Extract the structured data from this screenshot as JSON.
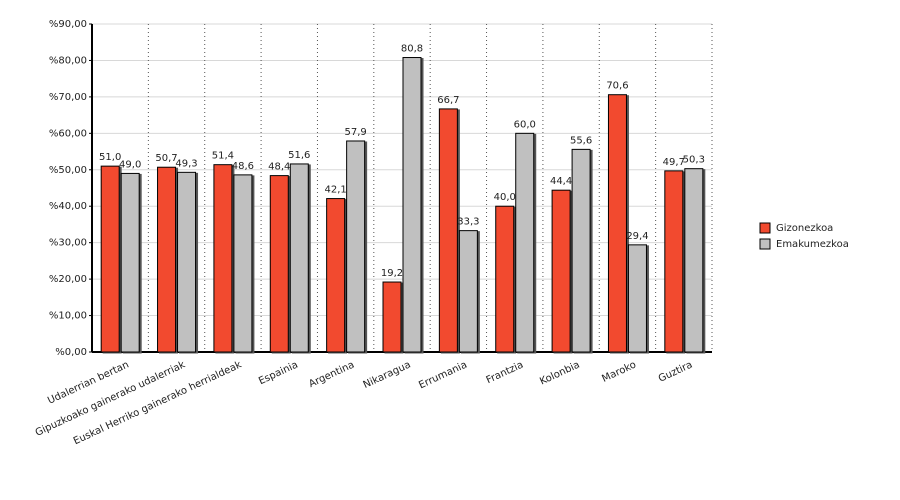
{
  "chart_data": {
    "type": "bar",
    "categories": [
      "Udalerrian bertan",
      "Gipuzkoako gainerako udalerriak",
      "Euskal Herriko gainerako herrialdeak",
      "Espainia",
      "Argentina",
      "Nikaragua",
      "Errumania",
      "Frantzia",
      "Kolonbia",
      "Maroko",
      "Guztira"
    ],
    "series": [
      {
        "name": "Gizonezkoa",
        "color": "#f24a2f",
        "values": [
          51.0,
          50.7,
          51.4,
          48.4,
          42.1,
          19.2,
          66.7,
          40.0,
          44.4,
          70.6,
          49.7
        ],
        "value_labels": [
          "51,0",
          "50,7",
          "51,4",
          "48,4",
          "42,1",
          "19,2",
          "66,7",
          "40,0",
          "44,4",
          "70,6",
          "49,7"
        ]
      },
      {
        "name": "Emakumezkoa",
        "color": "#c0c0c0",
        "values": [
          49.0,
          49.3,
          48.6,
          51.6,
          57.9,
          80.8,
          33.3,
          60.0,
          55.6,
          29.4,
          50.3
        ],
        "value_labels": [
          "49,0",
          "49,3",
          "48,6",
          "51,6",
          "57,9",
          "80,8",
          "33,3",
          "60,0",
          "55,6",
          "29,4",
          "50,3"
        ]
      }
    ],
    "ylim": [
      0,
      90
    ],
    "yticks": [
      {
        "value": 0,
        "label": "%0,00"
      },
      {
        "value": 10,
        "label": "%10,00"
      },
      {
        "value": 20,
        "label": "%20,00"
      },
      {
        "value": 30,
        "label": "%30,00"
      },
      {
        "value": 40,
        "label": "%40,00"
      },
      {
        "value": 50,
        "label": "%50,00"
      },
      {
        "value": 60,
        "label": "%60,00"
      },
      {
        "value": 70,
        "label": "%70,00"
      },
      {
        "value": 80,
        "label": "%80,00"
      },
      {
        "value": 90,
        "label": "%90,00"
      }
    ],
    "grid": true,
    "legend": "right"
  }
}
